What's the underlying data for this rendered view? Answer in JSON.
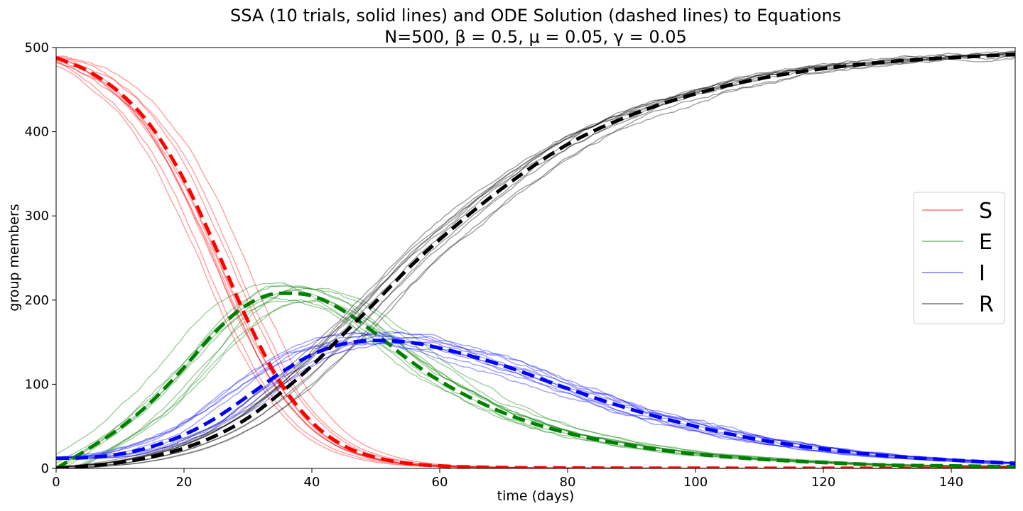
{
  "chart_data": {
    "type": "line",
    "title": "SSA (10 trials, solid lines) and ODE Solution (dashed lines) to Equations",
    "subtitle": "N=500, β = 0.5, μ = 0.05, γ = 0.05",
    "xlabel": "time (days)",
    "ylabel": "group members",
    "xlim": [
      0,
      150
    ],
    "ylim": [
      0,
      500
    ],
    "xticks": [
      "0",
      "20",
      "40",
      "60",
      "80",
      "100",
      "120",
      "140"
    ],
    "yticks": [
      "0",
      "100",
      "200",
      "300",
      "400",
      "500"
    ],
    "grid": false,
    "legend_position": "center-right",
    "trials": 10,
    "series": [
      {
        "name": "S",
        "color": "#ff0000",
        "ode": {
          "x": [
            0,
            5,
            10,
            15,
            20,
            25,
            30,
            35,
            40,
            45,
            50,
            55,
            60,
            70,
            80,
            90,
            100,
            110,
            120,
            130,
            140,
            150
          ],
          "y": [
            488,
            472,
            446,
            405,
            343,
            262,
            175,
            103,
            55,
            27,
            13,
            6,
            3,
            1,
            0.5,
            0.3,
            0.2,
            0.1,
            0.1,
            0.1,
            0.1,
            0.1
          ]
        }
      },
      {
        "name": "E",
        "color": "#008000",
        "ode": {
          "x": [
            0,
            5,
            10,
            15,
            20,
            25,
            30,
            35,
            40,
            45,
            50,
            55,
            60,
            70,
            80,
            90,
            100,
            110,
            120,
            130,
            140,
            150
          ],
          "y": [
            0,
            23,
            48,
            80,
            120,
            163,
            195,
            208,
            205,
            187,
            160,
            130,
            104,
            66,
            42,
            27,
            17,
            11,
            7,
            4,
            3,
            2
          ]
        }
      },
      {
        "name": "I",
        "color": "#0000ff",
        "ode": {
          "x": [
            0,
            5,
            10,
            15,
            20,
            25,
            30,
            35,
            40,
            45,
            50,
            55,
            60,
            70,
            80,
            90,
            100,
            110,
            120,
            130,
            140,
            150
          ],
          "y": [
            12,
            13,
            17,
            26,
            40,
            60,
            86,
            113,
            135,
            148,
            152,
            150,
            143,
            122,
            95,
            70,
            50,
            34,
            23,
            15,
            10,
            6
          ]
        }
      },
      {
        "name": "R",
        "color": "#000000",
        "ode": {
          "x": [
            0,
            5,
            10,
            15,
            20,
            25,
            30,
            35,
            40,
            45,
            50,
            55,
            60,
            70,
            80,
            90,
            100,
            110,
            120,
            130,
            140,
            150
          ],
          "y": [
            0,
            3,
            7,
            14,
            24,
            39,
            60,
            89,
            122,
            160,
            198,
            237,
            272,
            334,
            385,
            420,
            445,
            463,
            475,
            483,
            488,
            492
          ]
        }
      }
    ]
  }
}
